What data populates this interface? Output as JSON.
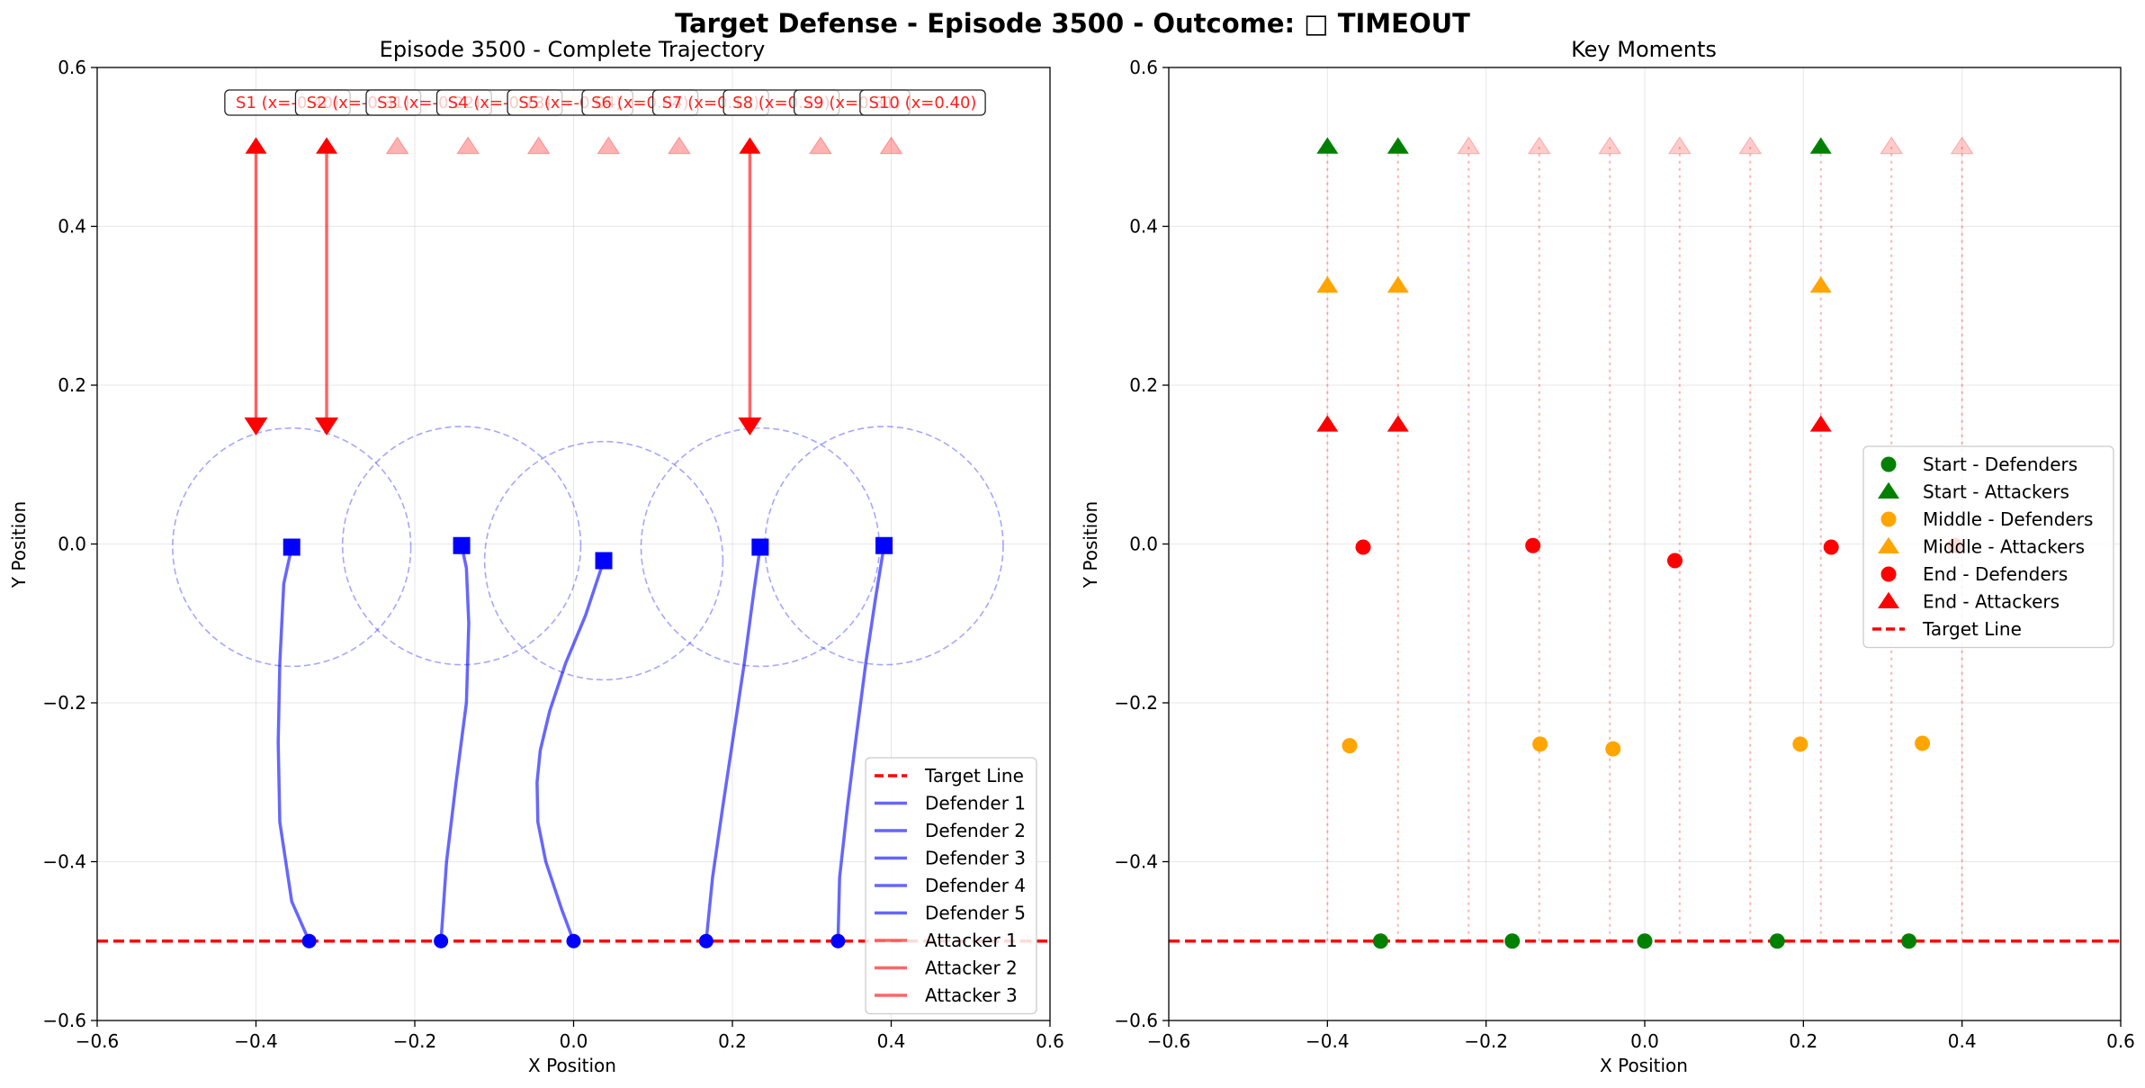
{
  "figure": {
    "suptitle": "Target Defense - Episode 3500 - Outcome: □ TIMEOUT"
  },
  "chart_data": [
    {
      "type": "scatter",
      "title": "Episode 3500 - Complete Trajectory",
      "xlabel": "X Position",
      "ylabel": "Y Position",
      "xlim": [
        -0.6,
        0.6
      ],
      "ylim": [
        -0.6,
        0.6
      ],
      "xticks": [
        "−0.6",
        "−0.4",
        "−0.2",
        "0.0",
        "0.2",
        "0.4",
        "0.6"
      ],
      "yticks": [
        "−0.6",
        "−0.4",
        "−0.2",
        "0.0",
        "0.2",
        "0.4",
        "0.6"
      ],
      "grid": true,
      "target_line": {
        "y": -0.5,
        "color": "#ff0000"
      },
      "sensor_labels": [
        {
          "text": "S1 (x=-0.40)",
          "x": -0.4
        },
        {
          "text": "S2 (x=-0.31)",
          "x": -0.311
        },
        {
          "text": "S3 (x=-0.22)",
          "x": -0.222
        },
        {
          "text": "S4 (x=-0.13)",
          "x": -0.133
        },
        {
          "text": "S5 (x=-0.04)",
          "x": -0.044
        },
        {
          "text": "S6 (x=0.04)",
          "x": 0.044
        },
        {
          "text": "S7 (x=0.13)",
          "x": 0.133
        },
        {
          "text": "S8 (x=0.22)",
          "x": 0.222
        },
        {
          "text": "S9 (x=0.31)",
          "x": 0.311
        },
        {
          "text": "S10 (x=0.40)",
          "x": 0.4
        }
      ],
      "spawn_markers": {
        "y": 0.5,
        "x": [
          -0.4,
          -0.311,
          -0.222,
          -0.133,
          -0.044,
          0.044,
          0.133,
          0.222,
          0.311,
          0.4
        ],
        "active": [
          true,
          true,
          false,
          false,
          false,
          false,
          false,
          true,
          false,
          false
        ]
      },
      "attackers": [
        {
          "name": "Attacker 1",
          "start": [
            -0.4,
            0.5
          ],
          "end": [
            -0.4,
            0.15
          ]
        },
        {
          "name": "Attacker 2",
          "start": [
            -0.311,
            0.5
          ],
          "end": [
            -0.311,
            0.15
          ]
        },
        {
          "name": "Attacker 3",
          "start": [
            0.222,
            0.5
          ],
          "end": [
            0.222,
            0.15
          ]
        }
      ],
      "defenders": [
        {
          "name": "Defender 1",
          "capture_radius": 0.15,
          "path": [
            [
              -0.333,
              -0.5
            ],
            [
              -0.355,
              -0.45
            ],
            [
              -0.37,
              -0.35
            ],
            [
              -0.372,
              -0.25
            ],
            [
              -0.37,
              -0.15
            ],
            [
              -0.365,
              -0.05
            ],
            [
              -0.355,
              -0.004
            ]
          ]
        },
        {
          "name": "Defender 2",
          "capture_radius": 0.15,
          "path": [
            [
              -0.167,
              -0.5
            ],
            [
              -0.16,
              -0.4
            ],
            [
              -0.148,
              -0.3
            ],
            [
              -0.135,
              -0.2
            ],
            [
              -0.132,
              -0.1
            ],
            [
              -0.135,
              -0.03
            ],
            [
              -0.141,
              -0.002
            ]
          ]
        },
        {
          "name": "Defender 3",
          "capture_radius": 0.15,
          "path": [
            [
              0.0,
              -0.5
            ],
            [
              -0.015,
              -0.46
            ],
            [
              -0.035,
              -0.4
            ],
            [
              -0.045,
              -0.35
            ],
            [
              -0.046,
              -0.3
            ],
            [
              -0.042,
              -0.26
            ],
            [
              -0.03,
              -0.21
            ],
            [
              -0.01,
              -0.15
            ],
            [
              0.015,
              -0.09
            ],
            [
              0.038,
              -0.021
            ]
          ]
        },
        {
          "name": "Defender 4",
          "capture_radius": 0.15,
          "path": [
            [
              0.167,
              -0.5
            ],
            [
              0.175,
              -0.42
            ],
            [
              0.188,
              -0.33
            ],
            [
              0.2,
              -0.25
            ],
            [
              0.215,
              -0.15
            ],
            [
              0.227,
              -0.06
            ],
            [
              0.235,
              -0.004
            ]
          ]
        },
        {
          "name": "Defender 5",
          "capture_radius": 0.15,
          "path": [
            [
              0.333,
              -0.5
            ],
            [
              0.335,
              -0.42
            ],
            [
              0.345,
              -0.33
            ],
            [
              0.355,
              -0.25
            ],
            [
              0.368,
              -0.15
            ],
            [
              0.38,
              -0.07
            ],
            [
              0.391,
              -0.002
            ]
          ]
        }
      ],
      "legend": {
        "placement": "lower right",
        "entries": [
          "Target Line",
          "Defender 1",
          "Defender 2",
          "Defender 3",
          "Defender 4",
          "Defender 5",
          "Attacker 1",
          "Attacker 2",
          "Attacker 3"
        ]
      },
      "colors": {
        "defender": "#0000ff",
        "attacker": "#ff0000",
        "target": "#ff0000"
      }
    },
    {
      "type": "scatter",
      "title": "Key Moments",
      "xlabel": "X Position",
      "ylabel": "Y Position",
      "xlim": [
        -0.6,
        0.6
      ],
      "ylim": [
        -0.6,
        0.6
      ],
      "xticks": [
        "−0.6",
        "−0.4",
        "−0.2",
        "0.0",
        "0.2",
        "0.4",
        "0.6"
      ],
      "yticks": [
        "−0.6",
        "−0.4",
        "−0.2",
        "0.0",
        "0.2",
        "0.4",
        "0.6"
      ],
      "grid": true,
      "target_line": {
        "y": -0.5,
        "color": "#ff0000"
      },
      "sensor_lines": {
        "x": [
          -0.4,
          -0.311,
          -0.222,
          -0.133,
          -0.044,
          0.044,
          0.133,
          0.222,
          0.311,
          0.4
        ],
        "y_from": -0.5,
        "y_to": 0.5
      },
      "faded_attackers": {
        "y": 0.5,
        "x": [
          -0.222,
          -0.133,
          -0.044,
          0.044,
          0.133,
          0.311,
          0.4
        ]
      },
      "series": [
        {
          "name": "Start - Defenders",
          "marker": "circle",
          "color": "#008000",
          "points": [
            [
              -0.333,
              -0.5
            ],
            [
              -0.167,
              -0.5
            ],
            [
              0.0,
              -0.5
            ],
            [
              0.167,
              -0.5
            ],
            [
              0.333,
              -0.5
            ]
          ]
        },
        {
          "name": "Start - Attackers",
          "marker": "triangle",
          "color": "#008000",
          "points": [
            [
              -0.4,
              0.5
            ],
            [
              -0.311,
              0.5
            ],
            [
              0.222,
              0.5
            ]
          ]
        },
        {
          "name": "Middle - Defenders",
          "marker": "circle",
          "color": "#ffa500",
          "points": [
            [
              -0.372,
              -0.254
            ],
            [
              -0.132,
              -0.252
            ],
            [
              -0.04,
              -0.258
            ],
            [
              0.196,
              -0.252
            ],
            [
              0.35,
              -0.251
            ]
          ]
        },
        {
          "name": "Middle - Attackers",
          "marker": "triangle",
          "color": "#ffa500",
          "points": [
            [
              -0.4,
              0.325
            ],
            [
              -0.311,
              0.325
            ],
            [
              0.222,
              0.325
            ]
          ]
        },
        {
          "name": "End - Defenders",
          "marker": "circle",
          "color": "#ff0000",
          "points": [
            [
              -0.355,
              -0.004
            ],
            [
              -0.141,
              -0.002
            ],
            [
              0.038,
              -0.021
            ],
            [
              0.235,
              -0.004
            ],
            [
              0.391,
              -0.002
            ]
          ]
        },
        {
          "name": "End - Attackers",
          "marker": "triangle",
          "color": "#ff0000",
          "points": [
            [
              -0.4,
              0.15
            ],
            [
              -0.311,
              0.15
            ],
            [
              0.222,
              0.15
            ]
          ]
        }
      ],
      "legend": {
        "placement": "center right",
        "entries": [
          "Start - Defenders",
          "Start - Attackers",
          "Middle - Defenders",
          "Middle - Attackers",
          "End - Defenders",
          "End - Attackers",
          "Target Line"
        ]
      }
    }
  ]
}
